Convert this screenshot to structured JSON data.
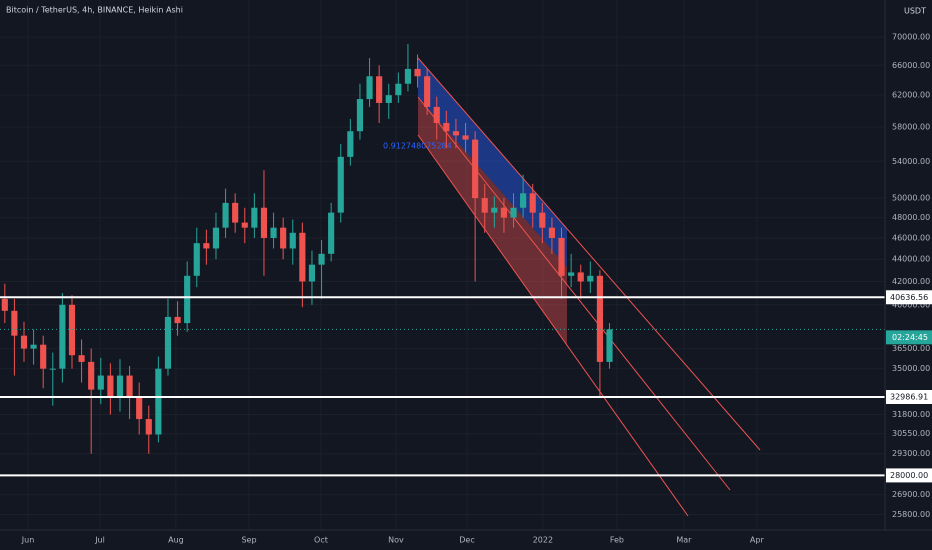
{
  "header": {
    "title": "Bitcoin / TetherUS, 4h, BINANCE, Heikin Ashi",
    "currency": "USDT"
  },
  "chart_data": {
    "type": "candlestick",
    "categories": [
      null,
      null,
      null,
      null,
      null,
      null,
      null,
      null,
      null,
      null,
      null,
      null,
      null,
      null,
      null,
      null,
      null,
      null,
      null,
      null,
      null,
      null,
      null,
      null,
      null,
      null,
      null,
      null,
      null,
      null,
      null,
      null,
      null,
      null,
      null,
      null,
      null,
      null,
      null,
      null,
      null,
      null,
      null,
      null,
      null,
      null,
      null,
      null,
      null,
      null,
      null,
      null,
      null,
      null,
      null,
      null,
      null,
      null,
      null,
      null,
      null,
      null,
      null,
      null
    ],
    "open": [
      40500,
      39500,
      37500,
      36500,
      36800,
      35000,
      35000,
      40000,
      36000,
      35500,
      33500,
      34500,
      33000,
      34500,
      33000,
      31500,
      30500,
      35000,
      39000,
      38500,
      42500,
      45500,
      45000,
      47000,
      49500,
      47500,
      47000,
      49000,
      46000,
      47000,
      45000,
      46500,
      42000,
      43500,
      44500,
      48500,
      54500,
      57500,
      61500,
      64500,
      61000,
      62000,
      63500,
      65500,
      64500,
      60500,
      58500,
      57500,
      57000,
      56500,
      50000,
      48500,
      49000,
      48000,
      49000,
      50500,
      48500,
      47000,
      46000,
      42500,
      42800,
      42000,
      42500,
      35500
    ],
    "high": [
      41800,
      40500,
      38600,
      38000,
      37500,
      36200,
      41000,
      40800,
      37200,
      36500,
      35800,
      35400,
      35700,
      35200,
      34000,
      32400,
      35900,
      40500,
      40300,
      43800,
      47000,
      46800,
      48500,
      51000,
      50500,
      49000,
      50500,
      53000,
      48500,
      48000,
      47800,
      47500,
      44800,
      45800,
      49500,
      56000,
      59000,
      63500,
      67000,
      66000,
      63500,
      65000,
      69000,
      67500,
      65500,
      61800,
      60000,
      59000,
      58500,
      57500,
      51500,
      50200,
      50000,
      50500,
      52500,
      51500,
      49500,
      48000,
      47000,
      44500,
      43500,
      43800,
      43000,
      38500
    ],
    "low": [
      38500,
      34500,
      35500,
      35300,
      33600,
      32400,
      34000,
      35000,
      34000,
      29300,
      32500,
      31800,
      32000,
      31500,
      30500,
      29300,
      30000,
      34500,
      37500,
      37800,
      41500,
      43500,
      44000,
      46000,
      46500,
      45500,
      46000,
      42500,
      45000,
      44000,
      43500,
      39800,
      40000,
      40500,
      43800,
      47500,
      53500,
      56500,
      60500,
      58500,
      59000,
      61000,
      62500,
      63000,
      59500,
      56500,
      55500,
      55500,
      55000,
      42000,
      46500,
      47000,
      46500,
      47000,
      48000,
      47000,
      45500,
      44500,
      40500,
      41500,
      40500,
      41000,
      33000,
      35000
    ],
    "close": [
      39500,
      37500,
      36500,
      36800,
      35000,
      35000,
      40000,
      36000,
      35500,
      33500,
      34500,
      33000,
      34500,
      33000,
      31500,
      30500,
      35000,
      39000,
      38500,
      42500,
      45500,
      45000,
      47000,
      49500,
      47500,
      47000,
      49000,
      46000,
      47000,
      45000,
      46500,
      42000,
      43500,
      44500,
      48500,
      54500,
      57500,
      61500,
      64500,
      61000,
      62000,
      63500,
      65500,
      64500,
      60500,
      58500,
      57500,
      57000,
      56500,
      50000,
      48500,
      49000,
      48000,
      49000,
      50500,
      48500,
      47000,
      46000,
      42500,
      42800,
      42000,
      42500,
      35500,
      38000
    ],
    "up_color": "#26a69a",
    "down_color": "#ef5350",
    "xlim": [
      -0.5,
      91.7
    ],
    "xticks": [
      {
        "value": 2.42,
        "label": "Jun"
      },
      {
        "value": 9.92,
        "label": "Jul"
      },
      {
        "value": 17.83,
        "label": "Aug"
      },
      {
        "value": 25.44,
        "label": "Sep"
      },
      {
        "value": 32.94,
        "label": "Oct"
      },
      {
        "value": 40.75,
        "label": "Nov"
      },
      {
        "value": 48.15,
        "label": "Dec"
      },
      {
        "value": 56.06,
        "label": "2022"
      },
      {
        "value": 63.77,
        "label": "Feb"
      },
      {
        "value": 70.75,
        "label": "Mar"
      },
      {
        "value": 78.35,
        "label": "Apr"
      }
    ],
    "ylim": [
      24980,
      75650
    ],
    "log_scale": true,
    "grid": true,
    "yticks": [
      {
        "value": 70000,
        "label": "70000.00"
      },
      {
        "value": 66000,
        "label": "66000.00"
      },
      {
        "value": 62000,
        "label": "62000.00"
      },
      {
        "value": 58000,
        "label": "58000.00"
      },
      {
        "value": 54000,
        "label": "54000.00"
      },
      {
        "value": 50000,
        "label": "50000.00"
      },
      {
        "value": 48000,
        "label": "48000.00"
      },
      {
        "value": 46000,
        "label": "46000.00"
      },
      {
        "value": 44000,
        "label": "44000.00"
      },
      {
        "value": 42000,
        "label": "42000.00"
      },
      {
        "value": 40000,
        "label": "40000.00"
      },
      {
        "value": 36500,
        "label": "36500.00"
      },
      {
        "value": 35000,
        "label": "35000.00"
      },
      {
        "value": 31800,
        "label": "31800.00"
      },
      {
        "value": 30550,
        "label": "30550.00"
      },
      {
        "value": 29300,
        "label": "29300.00"
      },
      {
        "value": 26900,
        "label": "26900.00"
      },
      {
        "value": 25800,
        "label": "25800.00"
      }
    ],
    "levels": [
      40636.56,
      32986.91,
      {
        "value": 28000,
        "label": "28000.00"
      }
    ],
    "level_color": "#ffffff",
    "countdown": "02:24:45",
    "annotation": "0.912748075284"
  }
}
